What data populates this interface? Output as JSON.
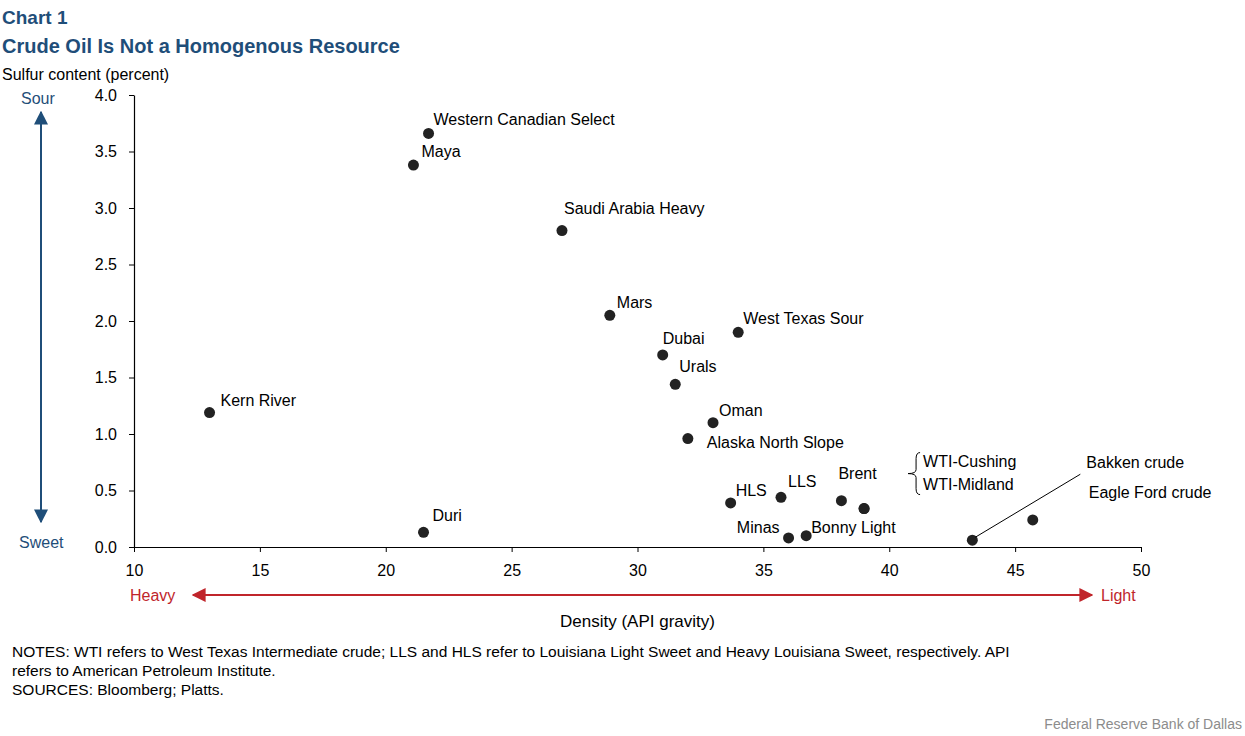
{
  "chart_data": {
    "type": "scatter",
    "title": "Chart 1",
    "subtitle": "Crude Oil Is Not a Homogenous Resource",
    "ylabel": "Sulfur content (percent)",
    "xlabel": "Density (API gravity)",
    "labels": [
      "Western Canadian Select",
      "Maya",
      "Saudi Arabia Heavy",
      "Mars",
      "West Texas Sour",
      "Dubai",
      "Urals",
      "Kern River",
      "Oman",
      "Alaska North Slope",
      "HLS",
      "LLS",
      "Brent",
      "WTI-Cushing",
      "WTI-Midland",
      "Bakken crude",
      "Eagle Ford crude",
      "Minas",
      "Bonny Light",
      "Duri"
    ],
    "x": [
      21.7,
      21.1,
      27.0,
      28.9,
      34.0,
      31.0,
      31.5,
      13.0,
      33.0,
      32.0,
      33.7,
      35.7,
      38.1,
      39.0,
      39.0,
      43.3,
      45.7,
      36.0,
      36.7,
      21.5
    ],
    "values": [
      3.66,
      3.38,
      2.8,
      2.05,
      1.9,
      1.7,
      1.44,
      1.19,
      1.1,
      0.96,
      0.39,
      0.44,
      0.41,
      0.34,
      0.34,
      0.06,
      0.24,
      0.08,
      0.1,
      0.13
    ],
    "color": "#222222",
    "marker": "circle",
    "xlim": [
      10,
      50
    ],
    "xticks": [
      10,
      15,
      20,
      25,
      30,
      35,
      40,
      45,
      50
    ],
    "ylim": [
      0,
      4
    ],
    "yticks": [
      {
        "value": 0,
        "label": "0.0"
      },
      0.5,
      {
        "value": 1,
        "label": "1.0"
      },
      1.5,
      {
        "value": 2,
        "label": "2.0"
      },
      2.5,
      {
        "value": 3,
        "label": "3.0"
      },
      3.5,
      {
        "value": 4,
        "label": "4.0"
      }
    ],
    "grid": false,
    "annotations": {
      "sour": "Sour",
      "sweet": "Sweet",
      "heavy": "Heavy",
      "light": "Light"
    },
    "notes": [
      "NOTES: WTI refers to West Texas Intermediate crude; LLS and HLS refer to Louisiana Light Sweet and Heavy Louisiana Sweet, respectively. API",
      "refers to American Petroleum Institute."
    ],
    "source": "SOURCES: Bloomberg; Platts.",
    "credit": "Federal Reserve Bank of Dallas"
  }
}
